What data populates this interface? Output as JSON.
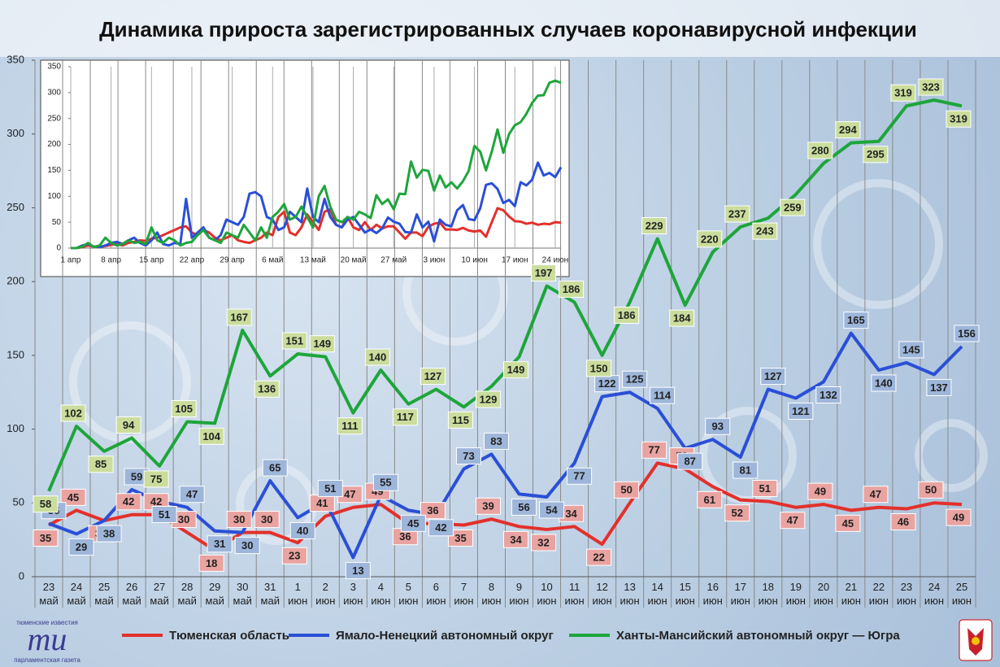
{
  "chart_data": [
    {
      "type": "line",
      "title": "Динамика прироста зарегистрированных случаев коронавирусной инфекции",
      "categories": [
        "23 май",
        "24 май",
        "25 май",
        "26 май",
        "27 май",
        "28 май",
        "29 май",
        "30 май",
        "31 май",
        "1 июн",
        "2 июн",
        "3 июн",
        "4 июн",
        "5 июн",
        "6 июн",
        "7 июн",
        "8 июн",
        "9 июн",
        "10 июн",
        "11 июн",
        "12 июн",
        "13 июн",
        "14 июн",
        "15 июн",
        "16 июн",
        "17 июн",
        "18 июн",
        "19 июн",
        "20 июн",
        "21 июн",
        "22 июн",
        "23 июн",
        "24 июн",
        "25 июн"
      ],
      "series": [
        {
          "name": "Тюменская область",
          "color": "#e3302b",
          "label_color": "#e9a3a0",
          "values": [
            35,
            45,
            38,
            42,
            42,
            30,
            18,
            30,
            30,
            23,
            41,
            47,
            49,
            36,
            36,
            35,
            39,
            34,
            32,
            34,
            22,
            50,
            77,
            73,
            61,
            52,
            51,
            47,
            49,
            45,
            47,
            46,
            50,
            49
          ]
        },
        {
          "name": "Ямало-Ненецкий автономный округ",
          "color": "#2a4fd6",
          "label_color": "#9db6da",
          "values": [
            36,
            29,
            38,
            59,
            51,
            47,
            31,
            30,
            65,
            40,
            51,
            13,
            55,
            45,
            42,
            73,
            83,
            56,
            54,
            77,
            122,
            125,
            114,
            87,
            93,
            81,
            127,
            121,
            132,
            165,
            140,
            145,
            137,
            156
          ]
        },
        {
          "name": "Ханты-Мансийский автономный округ — Югра",
          "color": "#1ea53b",
          "label_color": "#cadd9c",
          "values": [
            58,
            102,
            85,
            94,
            75,
            105,
            104,
            167,
            136,
            151,
            149,
            111,
            140,
            117,
            127,
            115,
            129,
            149,
            197,
            186,
            150,
            186,
            229,
            184,
            220,
            237,
            243,
            259,
            280,
            294,
            295,
            319,
            323,
            319
          ]
        }
      ],
      "ylim": [
        0,
        350
      ],
      "yticks": [
        0,
        50,
        100,
        150,
        200,
        250,
        300,
        350
      ],
      "legend": "bottom"
    },
    {
      "type": "line",
      "categories": [
        "1 апр",
        null,
        null,
        null,
        null,
        null,
        null,
        "8 апр",
        null,
        null,
        null,
        null,
        null,
        null,
        "15 апр",
        null,
        null,
        null,
        null,
        null,
        null,
        "22 апр",
        null,
        null,
        null,
        null,
        null,
        null,
        "29 апр",
        null,
        null,
        null,
        null,
        null,
        null,
        "6 май",
        null,
        null,
        null,
        null,
        null,
        null,
        "13 май",
        null,
        null,
        null,
        null,
        null,
        null,
        "20 май",
        null,
        null,
        null,
        null,
        null,
        null,
        "27 май",
        null,
        null,
        null,
        null,
        null,
        null,
        "3 июн",
        null,
        null,
        null,
        null,
        null,
        null,
        "10 июн",
        null,
        null,
        null,
        null,
        null,
        null,
        "17 июн",
        null,
        null,
        null,
        null,
        null,
        null,
        "24 июн",
        null
      ],
      "series": [
        {
          "color": "#e3302b",
          "values": [
            0,
            0,
            2,
            5,
            3,
            2,
            4,
            6,
            8,
            5,
            10,
            12,
            15,
            14,
            18,
            20,
            25,
            30,
            35,
            40,
            42,
            30,
            25,
            35,
            30,
            20,
            15,
            20,
            25,
            15,
            12,
            10,
            15,
            20,
            30,
            25,
            60,
            70,
            30,
            25,
            40,
            65,
            50,
            35,
            70,
            75,
            45,
            40,
            60,
            40,
            35,
            50,
            35,
            45,
            38,
            42,
            42,
            30,
            18,
            30,
            30,
            23,
            41,
            47,
            49,
            36,
            36,
            35,
            39,
            34,
            32,
            34,
            22,
            50,
            77,
            73,
            61,
            52,
            51,
            47,
            49,
            45,
            47,
            46,
            50,
            49
          ]
        },
        {
          "color": "#2a4fd6",
          "values": [
            0,
            0,
            5,
            8,
            3,
            2,
            5,
            10,
            12,
            8,
            15,
            20,
            10,
            5,
            15,
            30,
            8,
            5,
            10,
            8,
            95,
            20,
            30,
            40,
            20,
            15,
            25,
            55,
            50,
            45,
            60,
            105,
            108,
            100,
            60,
            55,
            35,
            40,
            70,
            60,
            50,
            115,
            60,
            50,
            95,
            60,
            45,
            40,
            55,
            60,
            45,
            30,
            36,
            29,
            38,
            59,
            51,
            47,
            31,
            30,
            65,
            40,
            51,
            13,
            55,
            45,
            42,
            73,
            83,
            56,
            54,
            77,
            122,
            125,
            114,
            87,
            93,
            81,
            127,
            121,
            132,
            165,
            140,
            145,
            137,
            156
          ]
        },
        {
          "color": "#1ea53b",
          "values": [
            0,
            0,
            3,
            10,
            2,
            5,
            20,
            10,
            5,
            8,
            15,
            10,
            12,
            8,
            40,
            15,
            10,
            20,
            15,
            5,
            10,
            12,
            25,
            35,
            20,
            15,
            10,
            30,
            25,
            20,
            45,
            30,
            15,
            40,
            20,
            60,
            70,
            85,
            55,
            60,
            80,
            60,
            40,
            100,
            120,
            80,
            55,
            50,
            60,
            55,
            70,
            65,
            58,
            102,
            85,
            94,
            75,
            105,
            104,
            167,
            136,
            151,
            149,
            111,
            140,
            117,
            127,
            115,
            129,
            149,
            197,
            186,
            150,
            186,
            229,
            184,
            220,
            237,
            243,
            259,
            280,
            294,
            295,
            319,
            323,
            319
          ]
        }
      ],
      "ylim": [
        0,
        350
      ],
      "yticks": [
        0,
        50,
        100,
        150,
        200,
        250,
        300,
        350
      ]
    }
  ],
  "logo": {
    "top": "тюменские известия",
    "mark": "ти",
    "bottom": "парламентская газета"
  }
}
